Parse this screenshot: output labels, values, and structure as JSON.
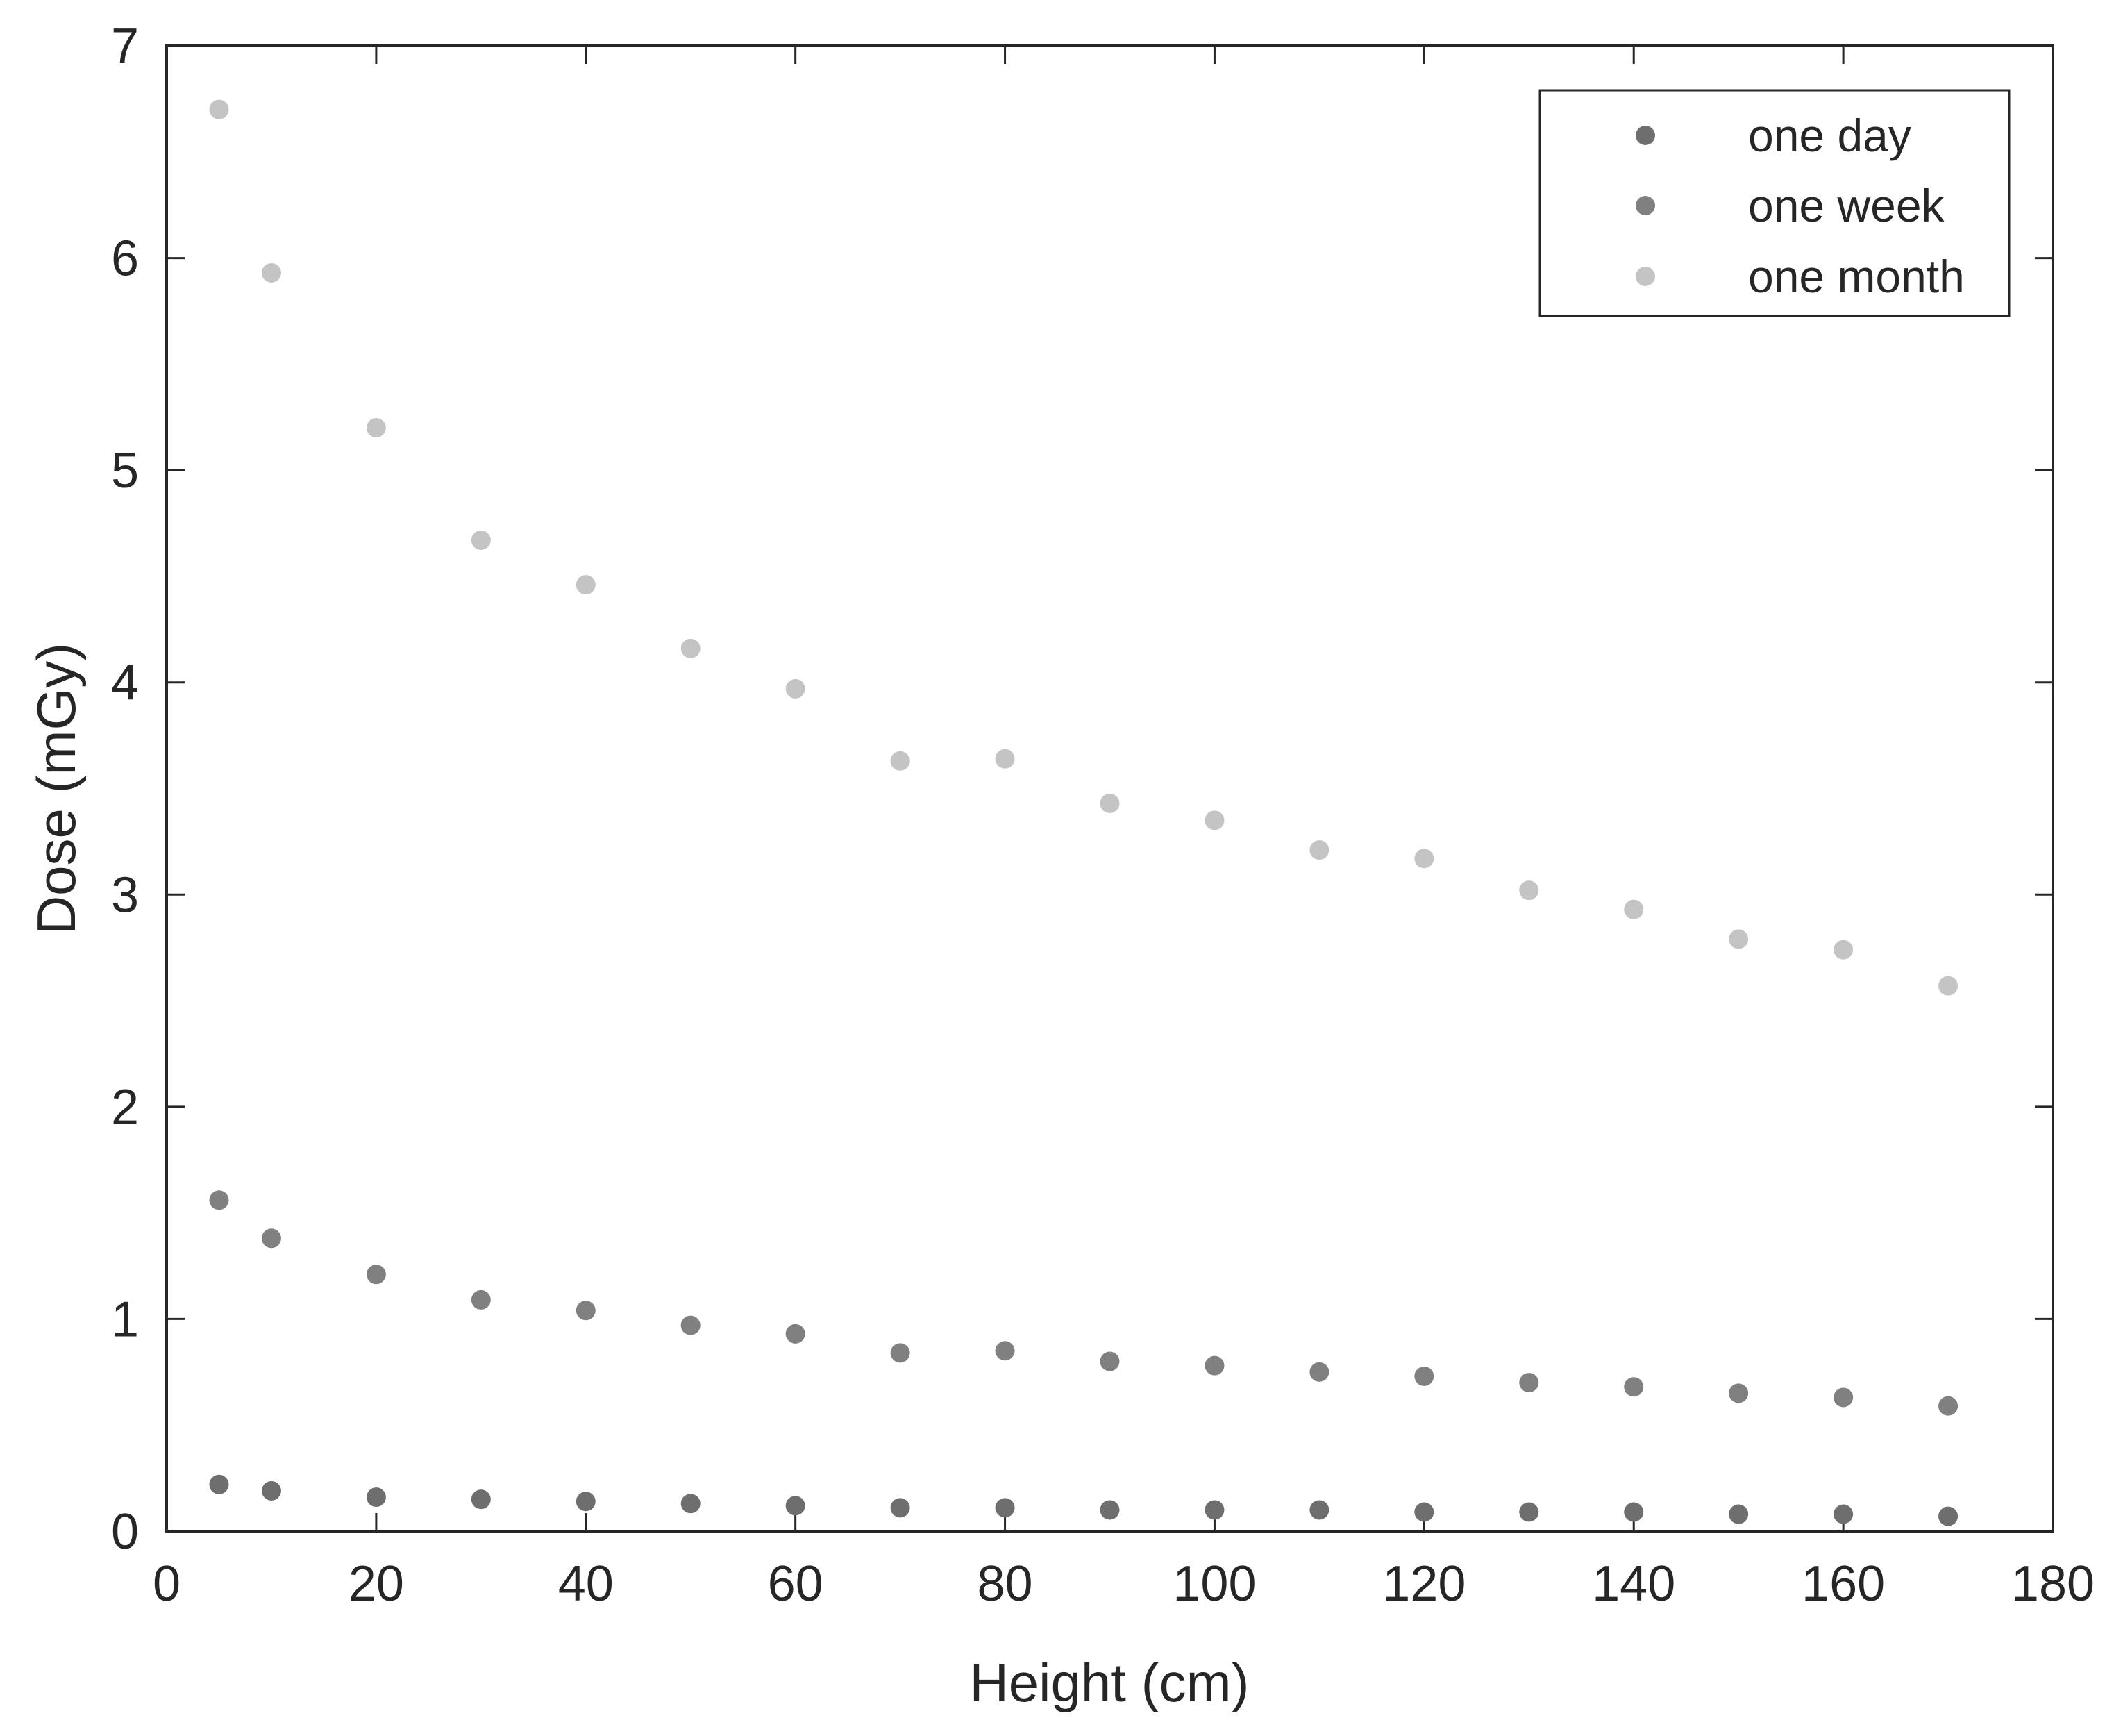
{
  "chart_data": {
    "type": "scatter",
    "title": "",
    "xlabel": "Height (cm)",
    "ylabel": "Dose (mGy)",
    "xlim": [
      0,
      180
    ],
    "ylim": [
      0,
      7
    ],
    "xticks": [
      0,
      20,
      40,
      60,
      80,
      100,
      120,
      140,
      160,
      180
    ],
    "yticks": [
      0,
      1,
      2,
      3,
      4,
      5,
      6,
      7
    ],
    "xtick_labels": [
      "0",
      "20",
      "40",
      "60",
      "80",
      "100",
      "120",
      "140",
      "160",
      "180"
    ],
    "ytick_labels": [
      "0",
      "1",
      "2",
      "3",
      "4",
      "5",
      "6",
      "7"
    ],
    "grid": false,
    "legend_position": "top-right",
    "x": [
      5,
      10,
      20,
      30,
      40,
      50,
      60,
      70,
      80,
      90,
      100,
      110,
      120,
      130,
      140,
      150,
      160,
      170
    ],
    "series": [
      {
        "name": "one day",
        "color": "#6e6e6e",
        "values": [
          0.22,
          0.19,
          0.16,
          0.15,
          0.14,
          0.13,
          0.12,
          0.11,
          0.11,
          0.1,
          0.1,
          0.1,
          0.09,
          0.09,
          0.09,
          0.08,
          0.08,
          0.07
        ]
      },
      {
        "name": "one week",
        "color": "#808080",
        "values": [
          1.56,
          1.38,
          1.21,
          1.09,
          1.04,
          0.97,
          0.93,
          0.84,
          0.85,
          0.8,
          0.78,
          0.75,
          0.73,
          0.7,
          0.68,
          0.65,
          0.63,
          0.59
        ]
      },
      {
        "name": "one month",
        "color": "#c4c4c4",
        "values": [
          6.7,
          5.93,
          5.2,
          4.67,
          4.46,
          4.16,
          3.97,
          3.63,
          3.64,
          3.43,
          3.35,
          3.21,
          3.17,
          3.02,
          2.93,
          2.79,
          2.74,
          2.57
        ]
      }
    ]
  }
}
